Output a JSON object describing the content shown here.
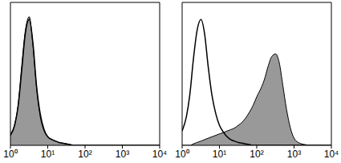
{
  "chart_data": [
    {
      "type": "area",
      "log": "x",
      "tick_labels": "x",
      "xlim": [
        1,
        10000
      ],
      "ylim": [
        0,
        100
      ],
      "xticks": [
        {
          "value": 1,
          "label": "10⁰"
        },
        {
          "value": 10,
          "label": "10¹"
        },
        {
          "value": 100,
          "label": "10²"
        },
        {
          "value": 1000,
          "label": "10³"
        },
        {
          "value": 10000,
          "label": "10⁴"
        }
      ],
      "x": [
        1,
        1.3,
        1.6,
        2,
        2.5,
        3.2,
        4,
        5,
        6.3,
        8,
        10,
        13,
        16,
        20,
        25,
        32,
        40,
        50,
        63,
        80,
        100,
        130,
        160,
        200,
        250,
        320,
        400,
        500,
        630,
        800,
        1000,
        1300,
        1600,
        2000,
        2500,
        3200,
        4000,
        5000,
        6300,
        8000,
        10000
      ],
      "series": [
        {
          "type": "area",
          "color": "#999999",
          "values": [
            8,
            15,
            28,
            55,
            80,
            90,
            70,
            40,
            20,
            10,
            6,
            4,
            3,
            2,
            1.5,
            1,
            0.5,
            0,
            0,
            0,
            0,
            0,
            0,
            0,
            0,
            0,
            0,
            0,
            0,
            0,
            0,
            0,
            0,
            0,
            0,
            0,
            0,
            0,
            0,
            0,
            0
          ]
        },
        {
          "type": "line",
          "color": "#000000",
          "values": [
            7,
            14,
            27,
            52,
            78,
            88,
            72,
            42,
            22,
            11,
            6,
            4,
            3,
            2,
            1.5,
            1,
            0.5,
            0,
            0,
            0,
            0,
            0,
            0,
            0,
            0,
            0,
            0,
            0,
            0,
            0,
            0,
            0,
            0,
            0,
            0,
            0,
            0,
            0,
            0,
            0,
            0
          ]
        }
      ]
    },
    {
      "type": "area",
      "log": "x",
      "tick_labels": "x",
      "xlim": [
        1,
        10000
      ],
      "ylim": [
        0,
        100
      ],
      "xticks": [
        {
          "value": 1,
          "label": "10⁰"
        },
        {
          "value": 10,
          "label": "10¹"
        },
        {
          "value": 100,
          "label": "10²"
        },
        {
          "value": 1000,
          "label": "10³"
        },
        {
          "value": 10000,
          "label": "10⁴"
        }
      ],
      "x": [
        1,
        1.3,
        1.6,
        2,
        2.5,
        3.2,
        4,
        5,
        6.3,
        8,
        10,
        13,
        16,
        20,
        25,
        32,
        40,
        50,
        63,
        80,
        100,
        130,
        160,
        200,
        250,
        320,
        400,
        500,
        630,
        800,
        1000,
        1300,
        1600,
        2000,
        2500,
        3200,
        4000,
        5000,
        6300,
        8000,
        10000
      ],
      "series": [
        {
          "type": "area",
          "color": "#999999",
          "values": [
            0,
            0,
            0,
            1,
            2,
            3,
            4,
            5,
            6,
            7,
            8,
            9,
            10,
            11,
            12,
            14,
            16,
            19,
            23,
            28,
            34,
            40,
            46,
            55,
            62,
            64,
            58,
            42,
            25,
            12,
            5,
            2,
            1,
            0.5,
            0,
            0,
            0,
            0,
            0,
            0,
            0
          ]
        },
        {
          "type": "line",
          "color": "#000000",
          "values": [
            10,
            20,
            35,
            60,
            80,
            88,
            78,
            55,
            35,
            22,
            14,
            9,
            6,
            4,
            3,
            2,
            1.5,
            1,
            0.5,
            0,
            0,
            0,
            0,
            0,
            0,
            0,
            0,
            0,
            0,
            0,
            0,
            0,
            0,
            0,
            0,
            0,
            0,
            0,
            0,
            0,
            0
          ]
        }
      ]
    }
  ]
}
